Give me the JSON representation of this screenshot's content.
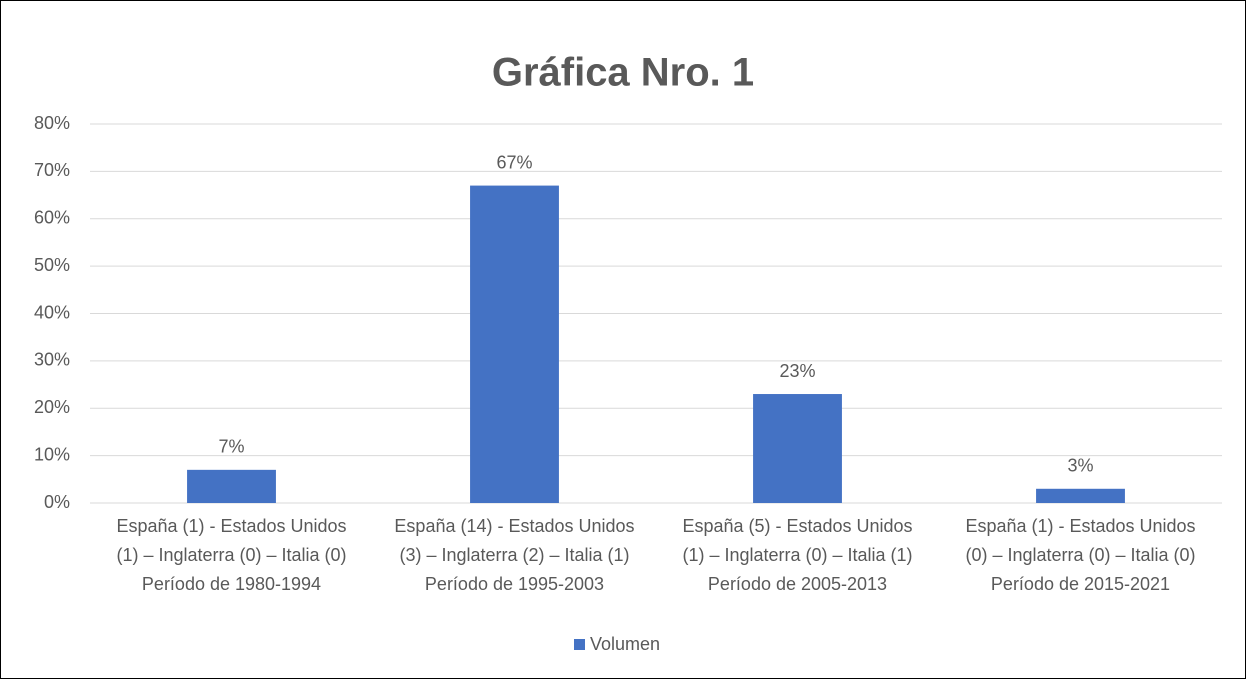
{
  "chart_data": {
    "type": "bar",
    "title": "Gráfica Nro. 1",
    "categories": [
      "España (1) - Estados Unidos\n(1) – Inglaterra (0) – Italia (0)\nPeríodo de 1980-1994",
      "España (14) - Estados Unidos\n(3) – Inglaterra (2) – Italia (1)\nPeríodo de 1995-2003",
      "España (5) - Estados Unidos\n(1) – Inglaterra (0) – Italia (1)\nPeríodo de 2005-2013",
      "España (1) - Estados Unidos\n(0) – Inglaterra (0) – Italia (0)\nPeríodo de 2015-2021"
    ],
    "series": [
      {
        "name": "Volumen",
        "color": "#4472c4",
        "values": [
          7,
          67,
          23,
          3
        ],
        "value_labels": [
          "7%",
          "67%",
          "23%",
          "3%"
        ]
      }
    ],
    "ylim": [
      0,
      80
    ],
    "yticks": [
      {
        "value": 0,
        "label": "0%"
      },
      {
        "value": 10,
        "label": "10%"
      },
      {
        "value": 20,
        "label": "20%"
      },
      {
        "value": 30,
        "label": "30%"
      },
      {
        "value": 40,
        "label": "40%"
      },
      {
        "value": 50,
        "label": "50%"
      },
      {
        "value": 60,
        "label": "60%"
      },
      {
        "value": 70,
        "label": "70%"
      },
      {
        "value": 80,
        "label": "80%"
      }
    ],
    "grid": true,
    "legend": "bottom"
  }
}
